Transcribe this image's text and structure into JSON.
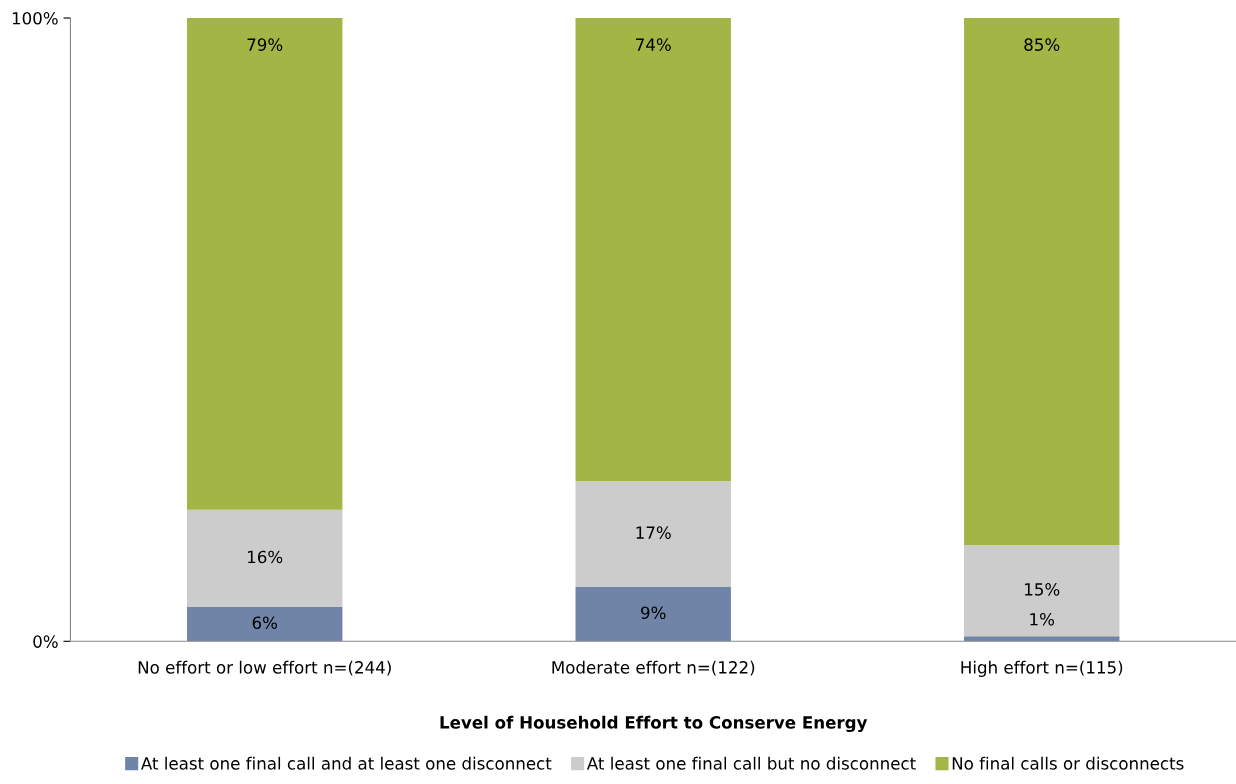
{
  "chart_data": {
    "type": "bar",
    "stacked": true,
    "xlabel": "Level of Household Effort to Conserve Energy",
    "categories": [
      "No effort or low effort n=(244)",
      "Moderate effort n=(122)",
      "High effort n=(115)"
    ],
    "series": [
      {
        "name": "At least one final call and at least one disconnect",
        "color": "#7084a8",
        "values": [
          5.5,
          8.7,
          0.8
        ],
        "value_labels": [
          "6%",
          "9%",
          "1%"
        ]
      },
      {
        "name": "At least one final call but no disconnect",
        "color": "#cccccc",
        "values": [
          15.6,
          17.0,
          14.6
        ],
        "value_labels": [
          "16%",
          "17%",
          "15%"
        ]
      },
      {
        "name": "No final calls or disconnects",
        "color": "#a3b545",
        "values": [
          78.9,
          74.3,
          84.6
        ],
        "value_labels": [
          "79%",
          "74%",
          "85%"
        ]
      }
    ],
    "ylim": [
      0,
      100
    ],
    "yticks": [
      {
        "value": 0,
        "label": "0%"
      },
      {
        "value": 100,
        "label": "100%"
      }
    ],
    "grid": false,
    "legend": "bottom"
  }
}
